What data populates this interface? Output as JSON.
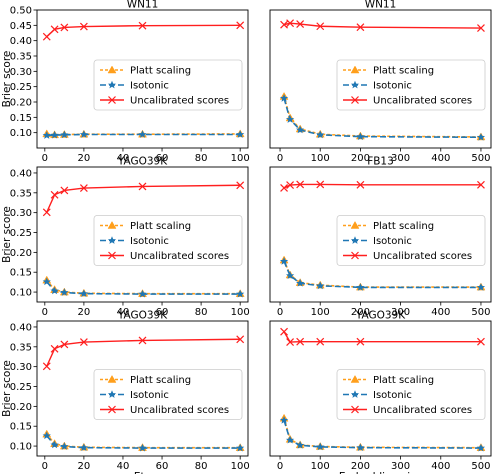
{
  "figure": {
    "ylabel": "Brier score"
  },
  "colors": {
    "platt": "#ff9f1c",
    "isotonic": "#1f77b4",
    "uncalibrated": "#ff1f1f",
    "axis": "#000000"
  },
  "legend_labels": [
    "Platt scaling",
    "Isotonic",
    "Uncalibrated scores"
  ],
  "chart_data": [
    {
      "type": "line",
      "title": "WN11",
      "xlabel": "",
      "ylabel": "Brier score",
      "xlim": [
        -4,
        104
      ],
      "ylim": [
        0.05,
        0.5
      ],
      "xticks": [
        0,
        20,
        40,
        60,
        80,
        100
      ],
      "yticks": [
        0.1,
        0.15,
        0.2,
        0.25,
        0.3,
        0.35,
        0.4,
        0.45,
        0.5
      ],
      "legend_position": "center-right",
      "series": [
        {
          "name": "Platt scaling",
          "x": [
            1,
            5,
            10,
            20,
            50,
            100
          ],
          "y": [
            0.096,
            0.093,
            0.094,
            0.095,
            0.095,
            0.096
          ]
        },
        {
          "name": "Isotonic",
          "x": [
            1,
            5,
            10,
            20,
            50,
            100
          ],
          "y": [
            0.091,
            0.092,
            0.093,
            0.094,
            0.094,
            0.094
          ]
        },
        {
          "name": "Uncalibrated scores",
          "x": [
            1,
            5,
            10,
            20,
            50,
            100
          ],
          "y": [
            0.413,
            0.437,
            0.443,
            0.446,
            0.449,
            0.45
          ]
        }
      ]
    },
    {
      "type": "line",
      "title": "WN11",
      "xlabel": "",
      "ylabel": "",
      "xlim": [
        -25,
        525
      ],
      "ylim": [
        0.05,
        0.5
      ],
      "xticks": [
        0,
        100,
        200,
        300,
        400,
        500
      ],
      "yticks": [],
      "legend_position": "center-right",
      "series": [
        {
          "name": "Platt scaling",
          "x": [
            10,
            25,
            50,
            100,
            200,
            500
          ],
          "y": [
            0.218,
            0.148,
            0.112,
            0.095,
            0.089,
            0.086
          ]
        },
        {
          "name": "Isotonic",
          "x": [
            10,
            25,
            50,
            100,
            200,
            500
          ],
          "y": [
            0.212,
            0.143,
            0.109,
            0.093,
            0.087,
            0.085
          ]
        },
        {
          "name": "Uncalibrated scores",
          "x": [
            10,
            25,
            50,
            100,
            200,
            500
          ],
          "y": [
            0.452,
            0.457,
            0.454,
            0.447,
            0.444,
            0.441
          ]
        }
      ]
    },
    {
      "type": "line",
      "title": "YAGO39K",
      "xlabel": "",
      "ylabel": "Brier score",
      "xlim": [
        -4,
        104
      ],
      "ylim": [
        0.075,
        0.415
      ],
      "xticks": [
        0,
        20,
        40,
        60,
        80,
        100
      ],
      "yticks": [
        0.1,
        0.15,
        0.2,
        0.25,
        0.3,
        0.35,
        0.4
      ],
      "legend_position": "center-right",
      "series": [
        {
          "name": "Platt scaling",
          "x": [
            1,
            5,
            10,
            20,
            50,
            100
          ],
          "y": [
            0.13,
            0.106,
            0.1,
            0.097,
            0.096,
            0.096
          ]
        },
        {
          "name": "Isotonic",
          "x": [
            1,
            5,
            10,
            20,
            50,
            100
          ],
          "y": [
            0.126,
            0.103,
            0.099,
            0.096,
            0.095,
            0.095
          ]
        },
        {
          "name": "Uncalibrated scores",
          "x": [
            1,
            5,
            10,
            20,
            50,
            100
          ],
          "y": [
            0.301,
            0.345,
            0.356,
            0.362,
            0.366,
            0.369
          ]
        }
      ]
    },
    {
      "type": "line",
      "title": "FB13",
      "xlabel": "",
      "ylabel": "",
      "xlim": [
        -25,
        525
      ],
      "ylim": [
        0.075,
        0.5
      ],
      "xticks": [
        0,
        100,
        200,
        300,
        400,
        500
      ],
      "yticks": [],
      "legend_position": "center-right",
      "series": [
        {
          "name": "Platt scaling",
          "x": [
            10,
            25,
            50,
            100,
            200,
            500
          ],
          "y": [
            0.207,
            0.16,
            0.136,
            0.128,
            0.122,
            0.122
          ]
        },
        {
          "name": "Isotonic",
          "x": [
            10,
            25,
            50,
            100,
            200,
            500
          ],
          "y": [
            0.203,
            0.158,
            0.134,
            0.126,
            0.121,
            0.121
          ]
        },
        {
          "name": "Uncalibrated scores",
          "x": [
            10,
            25,
            50,
            100,
            200,
            500
          ],
          "y": [
            0.434,
            0.443,
            0.445,
            0.445,
            0.444,
            0.444
          ]
        }
      ]
    },
    {
      "type": "line",
      "title": "YAGO39K",
      "xlabel": "Eta",
      "ylabel": "Brier score",
      "xlim": [
        -4,
        104
      ],
      "ylim": [
        0.075,
        0.415
      ],
      "xticks": [
        0,
        20,
        40,
        60,
        80,
        100
      ],
      "yticks": [
        0.1,
        0.15,
        0.2,
        0.25,
        0.3,
        0.35,
        0.4
      ],
      "legend_position": "center-right",
      "series": [
        {
          "name": "Platt scaling",
          "x": [
            1,
            5,
            10,
            20,
            50,
            100
          ],
          "y": [
            0.13,
            0.106,
            0.1,
            0.097,
            0.096,
            0.096
          ]
        },
        {
          "name": "Isotonic",
          "x": [
            1,
            5,
            10,
            20,
            50,
            100
          ],
          "y": [
            0.126,
            0.103,
            0.099,
            0.096,
            0.095,
            0.095
          ]
        },
        {
          "name": "Uncalibrated scores",
          "x": [
            1,
            5,
            10,
            20,
            50,
            100
          ],
          "y": [
            0.301,
            0.345,
            0.356,
            0.362,
            0.366,
            0.369
          ]
        }
      ]
    },
    {
      "type": "line",
      "title": "YAGO39K",
      "xlabel": "Embedding size",
      "ylabel": "",
      "xlim": [
        -25,
        525
      ],
      "ylim": [
        0.075,
        0.415
      ],
      "xticks": [
        0,
        100,
        200,
        300,
        400,
        500
      ],
      "yticks": [],
      "legend_position": "center-right",
      "series": [
        {
          "name": "Platt scaling",
          "x": [
            10,
            25,
            50,
            100,
            200,
            500
          ],
          "y": [
            0.17,
            0.117,
            0.103,
            0.099,
            0.097,
            0.096
          ]
        },
        {
          "name": "Isotonic",
          "x": [
            10,
            25,
            50,
            100,
            200,
            500
          ],
          "y": [
            0.165,
            0.115,
            0.102,
            0.098,
            0.096,
            0.095
          ]
        },
        {
          "name": "Uncalibrated scores",
          "x": [
            10,
            25,
            50,
            100,
            200,
            500
          ],
          "y": [
            0.388,
            0.362,
            0.363,
            0.363,
            0.363,
            0.363
          ]
        }
      ]
    }
  ]
}
